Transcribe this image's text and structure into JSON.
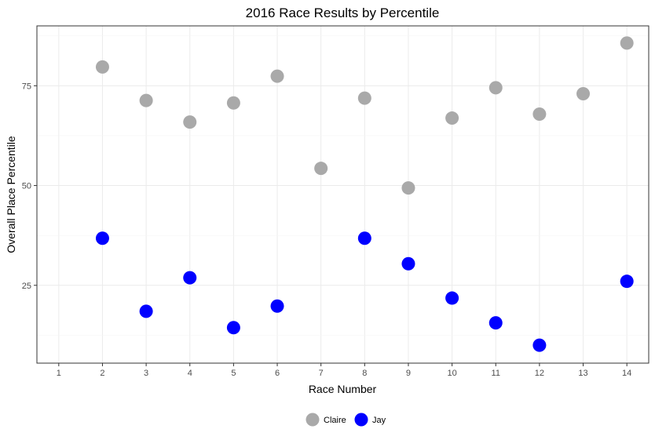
{
  "chart_data": {
    "type": "scatter",
    "title": "2016 Race Results by Percentile",
    "xlabel": "Race Number",
    "ylabel": "Overall Place Percentile",
    "xlim": [
      0.5,
      14.5
    ],
    "ylim": [
      5.5,
      90
    ],
    "x_ticks": [
      1,
      2,
      3,
      4,
      5,
      6,
      7,
      8,
      9,
      10,
      11,
      12,
      13,
      14
    ],
    "y_ticks": [
      25,
      50,
      75
    ],
    "grid": true,
    "legend_position": "bottom",
    "series": [
      {
        "name": "Claire",
        "color": "#a9a9a9",
        "points": [
          {
            "x": 2,
            "y": 79.7
          },
          {
            "x": 3,
            "y": 71.3
          },
          {
            "x": 4,
            "y": 65.9
          },
          {
            "x": 5,
            "y": 70.7
          },
          {
            "x": 6,
            "y": 77.4
          },
          {
            "x": 7,
            "y": 54.3
          },
          {
            "x": 8,
            "y": 71.9
          },
          {
            "x": 9,
            "y": 49.4
          },
          {
            "x": 10,
            "y": 66.9
          },
          {
            "x": 11,
            "y": 74.5
          },
          {
            "x": 12,
            "y": 67.9
          },
          {
            "x": 13,
            "y": 73.0
          },
          {
            "x": 14,
            "y": 85.7
          }
        ]
      },
      {
        "name": "Jay",
        "color": "#0000ff",
        "points": [
          {
            "x": 2,
            "y": 36.8
          },
          {
            "x": 3,
            "y": 18.5
          },
          {
            "x": 4,
            "y": 26.9
          },
          {
            "x": 5,
            "y": 14.4
          },
          {
            "x": 6,
            "y": 19.8
          },
          {
            "x": 8,
            "y": 36.8
          },
          {
            "x": 9,
            "y": 30.4
          },
          {
            "x": 10,
            "y": 21.8
          },
          {
            "x": 11,
            "y": 15.6
          },
          {
            "x": 12,
            "y": 10.0
          },
          {
            "x": 14,
            "y": 26.0
          }
        ]
      }
    ]
  }
}
